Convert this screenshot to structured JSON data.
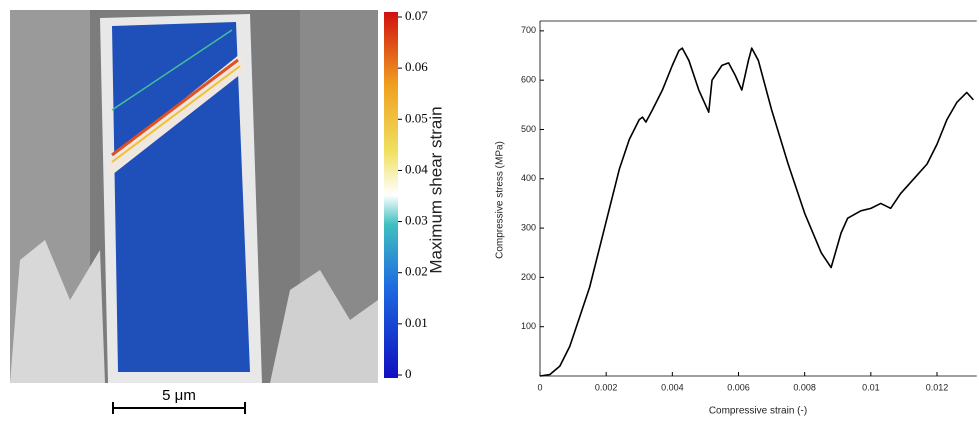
{
  "image": {
    "colorbar": {
      "label": "Maximum shear strain",
      "lim": [
        0,
        0.07
      ],
      "ticks": [
        0,
        0.01,
        0.02,
        0.03,
        0.04,
        0.05,
        0.06,
        0.07
      ]
    },
    "scale_bar": "5 μm"
  },
  "chart_data": {
    "type": "line",
    "xlabel": "Compressive strain (-)",
    "ylabel": "Compressive stress (MPa)",
    "x": [
      0,
      0.0003,
      0.0006,
      0.0009,
      0.0012,
      0.0015,
      0.0018,
      0.0021,
      0.0024,
      0.0027,
      0.003,
      0.0031,
      0.0032,
      0.0034,
      0.0037,
      0.004,
      0.0042,
      0.0043,
      0.0045,
      0.0048,
      0.0051,
      0.0052,
      0.0055,
      0.0057,
      0.0059,
      0.0061,
      0.0063,
      0.0064,
      0.0066,
      0.007,
      0.0075,
      0.008,
      0.0085,
      0.0088,
      0.0091,
      0.0093,
      0.0097,
      0.01,
      0.0103,
      0.0106,
      0.0109,
      0.0113,
      0.0117,
      0.012,
      0.0123,
      0.0126,
      0.0129,
      0.0131
    ],
    "values": [
      0,
      3,
      20,
      60,
      120,
      180,
      260,
      340,
      420,
      480,
      520,
      525,
      515,
      540,
      580,
      630,
      660,
      665,
      640,
      580,
      535,
      600,
      630,
      635,
      610,
      580,
      640,
      665,
      640,
      540,
      430,
      330,
      250,
      220,
      290,
      320,
      335,
      340,
      350,
      340,
      370,
      400,
      430,
      470,
      520,
      555,
      575,
      560
    ],
    "color": "#000000",
    "xlim": [
      0,
      0.0132
    ],
    "ylim": [
      0,
      720
    ],
    "xticks": [
      0,
      0.002,
      0.004,
      0.006,
      0.008,
      0.01,
      0.012
    ],
    "yticks": [
      100,
      200,
      300,
      400,
      500,
      600,
      700
    ]
  }
}
